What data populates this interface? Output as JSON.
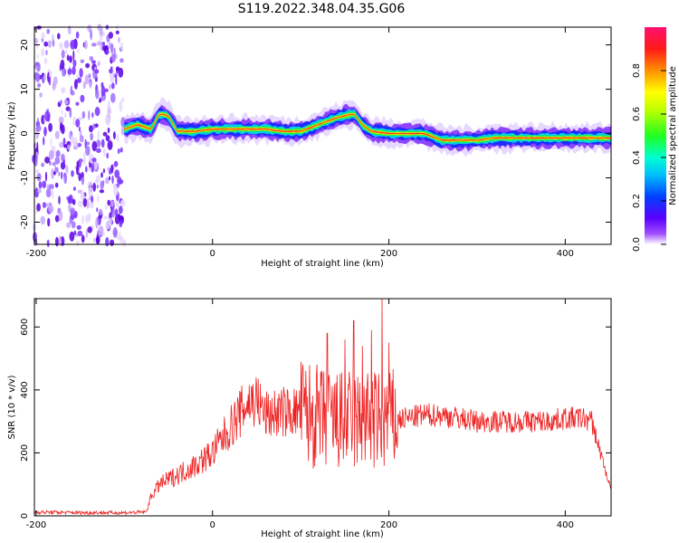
{
  "title": "S119.2022.348.04.35.G06",
  "colors": {
    "snr_line": "#ee2222",
    "frame": "#000000"
  },
  "chart_data": [
    {
      "type": "heatmap",
      "xlabel": "Height of straight line (km)",
      "ylabel": "Frequency (Hz)",
      "xlim": [
        -202,
        452
      ],
      "ylim": [
        -25,
        24
      ],
      "xticks": [
        -200,
        0,
        200,
        400
      ],
      "xticklabels": [
        "-200",
        "0",
        "200",
        "400"
      ],
      "yticks": [
        -20,
        -10,
        0,
        10,
        20
      ],
      "yticklabels": [
        "-20",
        "-10",
        "0",
        "10",
        "20"
      ],
      "noise_region_x": [
        -202,
        -100
      ],
      "ridge": {
        "x": [
          -100,
          -85,
          -70,
          -60,
          -50,
          -40,
          -20,
          0,
          20,
          60,
          80,
          100,
          120,
          140,
          160,
          170,
          180,
          200,
          220,
          240,
          260,
          280,
          300,
          320,
          340,
          360,
          380,
          400,
          420,
          440,
          452
        ],
        "frequency": [
          1,
          2,
          1,
          4.5,
          4,
          0.5,
          0.5,
          1,
          1,
          1,
          0.5,
          0.5,
          2,
          3.5,
          4.5,
          2,
          0.5,
          0,
          0,
          0,
          -1.5,
          -1.5,
          -1.5,
          -1,
          -1,
          -1,
          -1,
          -1,
          -1,
          -1,
          -1
        ]
      },
      "colorbar": {
        "label": "Normalized spectral amplitude",
        "range": [
          0,
          1
        ],
        "ticks": [
          0,
          0.2,
          0.4,
          0.6,
          0.8
        ],
        "ticklabels": [
          "0.0",
          "0.2",
          "0.4",
          "0.6",
          "0.8"
        ]
      },
      "grid": false
    },
    {
      "type": "line",
      "xlabel": "Height of straight line (km)",
      "ylabel": "SNR (10 * v/v)",
      "xlim": [
        -202,
        452
      ],
      "ylim": [
        0,
        690
      ],
      "xticks": [
        -200,
        0,
        200,
        400
      ],
      "xticklabels": [
        "-200",
        "0",
        "200",
        "400"
      ],
      "yticks": [
        0,
        200,
        400,
        600
      ],
      "yticklabels": [
        "0",
        "200",
        "400",
        "600"
      ],
      "envelope": {
        "x": [
          -202,
          -150,
          -100,
          -75,
          -70,
          -60,
          -40,
          -20,
          0,
          20,
          40,
          50,
          60,
          80,
          100,
          120,
          140,
          160,
          180,
          200,
          220,
          240,
          260,
          280,
          300,
          320,
          340,
          360,
          380,
          400,
          420,
          430,
          440,
          452
        ],
        "snr": [
          12,
          10,
          10,
          12,
          60,
          100,
          130,
          160,
          200,
          280,
          360,
          370,
          320,
          330,
          330,
          310,
          300,
          300,
          300,
          300,
          310,
          320,
          320,
          310,
          300,
          300,
          300,
          300,
          300,
          310,
          310,
          300,
          200,
          80
        ]
      },
      "peaks": {
        "x": [
          130,
          150,
          160,
          170,
          180,
          192,
          200
        ],
        "snr": [
          580,
          560,
          620,
          540,
          590,
          690,
          550
        ]
      },
      "grid": false
    }
  ]
}
